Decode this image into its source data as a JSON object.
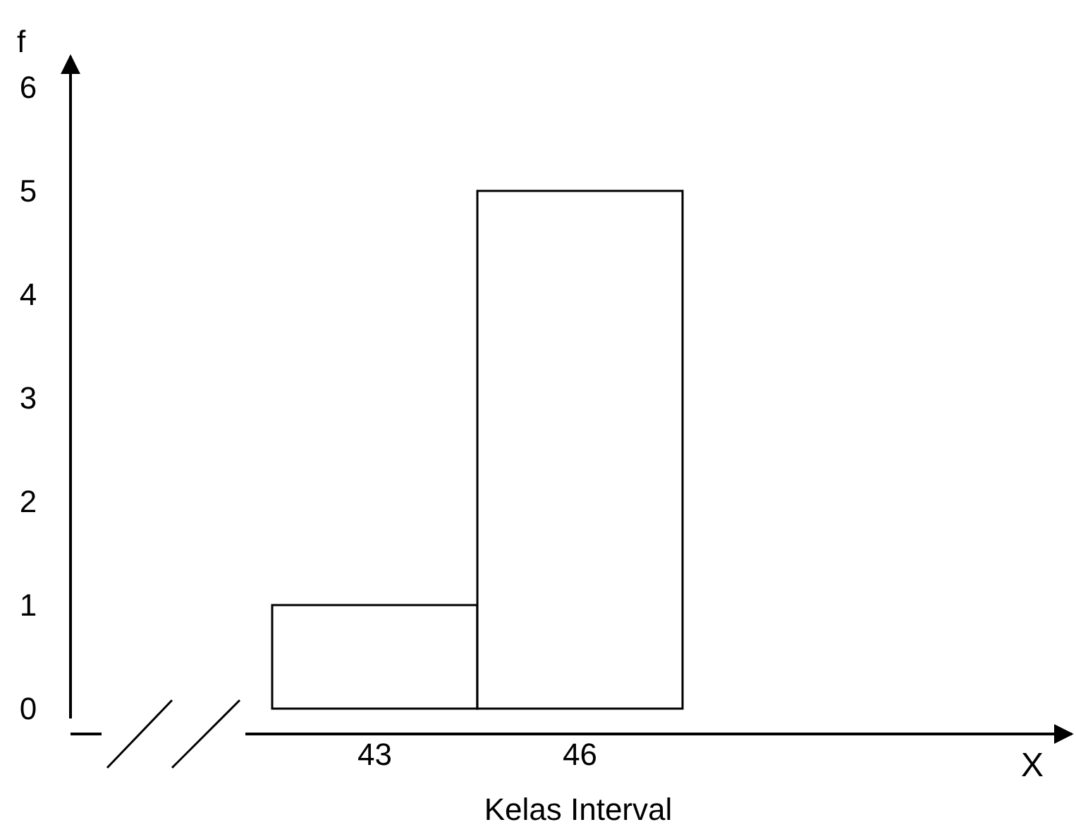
{
  "chart_data": {
    "type": "bar",
    "xlabel": "Kelas Interval",
    "ylabel": "f",
    "annotations": [
      "X"
    ],
    "categories": [
      "43",
      "46"
    ],
    "values": [
      1,
      5
    ],
    "color": "#ffffff",
    "ylim": [
      0,
      6.3
    ],
    "yticks": [
      0,
      1,
      2,
      3,
      4,
      5,
      6
    ]
  }
}
